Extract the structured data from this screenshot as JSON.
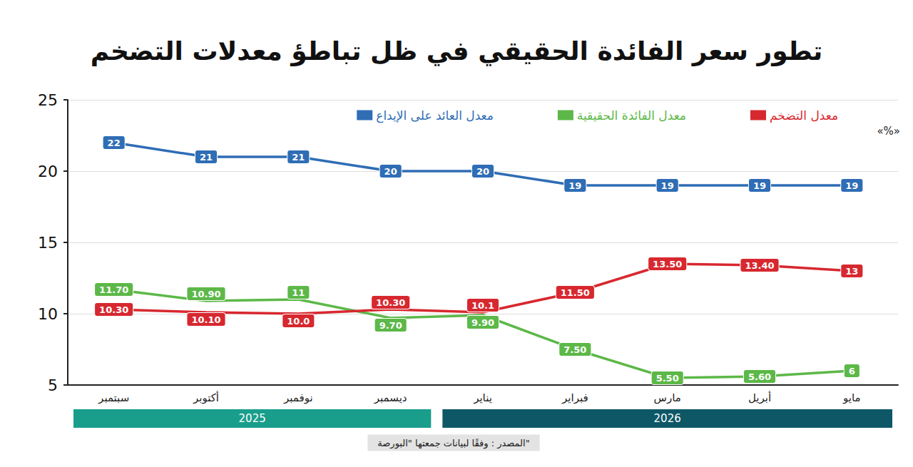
{
  "chart_data": {
    "type": "line",
    "title": "تطور سعر الفائدة الحقيقي في ظل تباطؤ معدلات التضخم",
    "y_label": "«%»",
    "categories": [
      "سبتمبر",
      "أكتوبر",
      "نوفمبر",
      "ديسمبر",
      "يناير",
      "فبراير",
      "مارس",
      "أبريل",
      "مايو"
    ],
    "series": [
      {
        "name": "معدل العائد على الإيداع",
        "color": "#2f6db5",
        "values": [
          22,
          21,
          21,
          20,
          20,
          19,
          19,
          19,
          19
        ]
      },
      {
        "name": "معدل الفائدة الحقيقية",
        "color": "#5cb848",
        "values": [
          11.7,
          10.9,
          11,
          9.7,
          9.9,
          7.5,
          5.5,
          5.6,
          6
        ],
        "value_labels": [
          "11.70",
          "10.90",
          "11",
          "9.70",
          "9.90",
          "7.50",
          "5.50",
          "5.60",
          "6"
        ]
      },
      {
        "name": "معدل التضخم",
        "color": "#d7282f",
        "values": [
          10.3,
          10.1,
          10.0,
          10.3,
          10.1,
          11.5,
          13.5,
          13.4,
          13
        ],
        "value_labels": [
          "10.30",
          "10.10",
          "10.0",
          "10.30",
          "10.1",
          "11.50",
          "13.50",
          "13.40",
          "13"
        ]
      }
    ],
    "ylim": [
      5,
      25
    ],
    "yticks": [
      5,
      10,
      15,
      20,
      25
    ],
    "grid": true,
    "legend": "top",
    "data_labels": true,
    "x_groups": [
      {
        "label": "2025",
        "from": "سبتمبر",
        "to": "ديسمبر"
      },
      {
        "label": "2026",
        "from": "يناير",
        "to": "مايو"
      }
    ],
    "source": "المصدر : وفقًا لبيانات جمعتها \"البورصة\""
  }
}
